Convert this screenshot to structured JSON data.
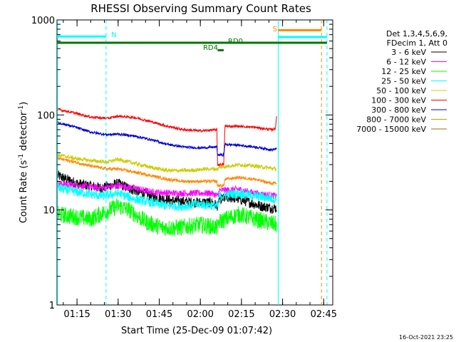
{
  "chart_data": {
    "type": "line",
    "title": "RHESSI Observing Summary Count Rates",
    "xlabel": "Start Time (25-Dec-09 01:07:42)",
    "ylabel_parts": [
      "Count Rate (s",
      "-1",
      " detector",
      "-1",
      ")"
    ],
    "y_scale": "log",
    "ylim": [
      1,
      1000
    ],
    "xlim_minutes": [
      67.7,
      168.3
    ],
    "y_ticks": [
      {
        "v": 1,
        "label": "1"
      },
      {
        "v": 10,
        "label": "10"
      },
      {
        "v": 100,
        "label": "100"
      },
      {
        "v": 1000,
        "label": "1000"
      }
    ],
    "x_ticks": [
      {
        "v": 75,
        "label": "01:15"
      },
      {
        "v": 90,
        "label": "01:30"
      },
      {
        "v": 105,
        "label": "01:45"
      },
      {
        "v": 120,
        "label": "02:00"
      },
      {
        "v": 135,
        "label": "02:15"
      },
      {
        "v": 150,
        "label": "02:30"
      },
      {
        "v": 165,
        "label": "02:45"
      }
    ],
    "legend_title": [
      "Det 1,3,4,5,6,9,",
      "FDecim 1, Att 0"
    ],
    "legend_placement": "right",
    "series": [
      {
        "name": "3 - 6 keV",
        "color": "#000000",
        "amp": 0.055,
        "points": [
          [
            68,
            23
          ],
          [
            75,
            19
          ],
          [
            84,
            17
          ],
          [
            90,
            19
          ],
          [
            96,
            16
          ],
          [
            102,
            14
          ],
          [
            110,
            12.5
          ],
          [
            118,
            12
          ],
          [
            124,
            12
          ],
          [
            126.5,
            11
          ],
          [
            126.8,
            13
          ],
          [
            132,
            13.5
          ],
          [
            138,
            12
          ],
          [
            142,
            11
          ],
          [
            146,
            10.5
          ],
          [
            147.8,
            10.5
          ]
        ]
      },
      {
        "name": "6 - 12 keV",
        "color": "#ff00ff",
        "amp": 0.035,
        "points": [
          [
            68,
            19
          ],
          [
            76,
            18
          ],
          [
            84,
            17
          ],
          [
            90,
            18
          ],
          [
            96,
            17
          ],
          [
            102,
            15.5
          ],
          [
            110,
            15
          ],
          [
            118,
            15
          ],
          [
            124,
            15
          ],
          [
            126.5,
            14
          ],
          [
            126.8,
            16
          ],
          [
            134,
            16.5
          ],
          [
            140,
            15
          ],
          [
            147.8,
            14
          ]
        ]
      },
      {
        "name": "12 - 25 keV",
        "color": "#00ff00",
        "amp": 0.09,
        "points": [
          [
            68,
            9
          ],
          [
            74,
            8.5
          ],
          [
            80,
            8
          ],
          [
            85,
            9.5
          ],
          [
            90,
            11
          ],
          [
            94,
            10
          ],
          [
            100,
            7.5
          ],
          [
            106,
            6.5
          ],
          [
            112,
            6.5
          ],
          [
            120,
            7
          ],
          [
            126.5,
            6.5
          ],
          [
            126.8,
            7.5
          ],
          [
            134,
            9
          ],
          [
            140,
            8
          ],
          [
            147.8,
            7
          ]
        ]
      },
      {
        "name": "25 - 50 keV",
        "color": "#00ffff",
        "amp": 0.05,
        "points": [
          [
            68,
            17
          ],
          [
            72,
            16
          ],
          [
            78,
            15
          ],
          [
            84,
            14
          ],
          [
            90,
            15
          ],
          [
            96,
            13
          ],
          [
            102,
            12
          ],
          [
            108,
            11
          ],
          [
            114,
            11
          ],
          [
            120,
            11.5
          ],
          [
            126.5,
            11
          ],
          [
            126.8,
            14
          ],
          [
            134,
            15
          ],
          [
            140,
            14
          ],
          [
            147.8,
            13
          ]
        ]
      },
      {
        "name": "50 - 100 keV",
        "color": "#cccc00",
        "amp": 0.02,
        "points": [
          [
            68,
            38
          ],
          [
            74,
            35
          ],
          [
            80,
            33
          ],
          [
            86,
            32
          ],
          [
            90,
            34
          ],
          [
            96,
            31
          ],
          [
            102,
            28
          ],
          [
            108,
            26
          ],
          [
            116,
            26
          ],
          [
            122,
            27
          ],
          [
            126.5,
            27
          ],
          [
            126.8,
            28
          ],
          [
            134,
            30
          ],
          [
            140,
            29
          ],
          [
            147.8,
            27
          ]
        ]
      },
      {
        "name": "100 - 300 keV",
        "color": "#ff0000",
        "amp": 0.013,
        "points": [
          [
            68,
            115
          ],
          [
            74,
            105
          ],
          [
            80,
            95
          ],
          [
            86,
            92
          ],
          [
            90,
            97
          ],
          [
            96,
            94
          ],
          [
            102,
            85
          ],
          [
            108,
            76
          ],
          [
            114,
            70
          ],
          [
            120,
            68
          ],
          [
            126,
            70
          ],
          [
            126.3,
            30
          ],
          [
            128.5,
            30
          ],
          [
            129,
            76
          ],
          [
            134,
            76
          ],
          [
            140,
            74
          ],
          [
            146,
            70
          ],
          [
            147.4,
            72
          ],
          [
            147.8,
            100
          ]
        ]
      },
      {
        "name": "300 - 800 keV",
        "color": "#0000dd",
        "amp": 0.013,
        "points": [
          [
            68,
            83
          ],
          [
            74,
            75
          ],
          [
            80,
            66
          ],
          [
            86,
            62
          ],
          [
            90,
            63
          ],
          [
            96,
            60
          ],
          [
            102,
            55
          ],
          [
            108,
            49
          ],
          [
            114,
            46
          ],
          [
            120,
            45
          ],
          [
            126,
            46
          ],
          [
            126.3,
            38
          ],
          [
            128.5,
            38
          ],
          [
            129,
            49
          ],
          [
            134,
            48
          ],
          [
            140,
            46
          ],
          [
            146,
            43
          ],
          [
            147.8,
            44
          ]
        ]
      },
      {
        "name": "800 - 7000 keV",
        "color": "#ff8800",
        "amp": 0.016,
        "points": [
          [
            68,
            35
          ],
          [
            74,
            32
          ],
          [
            80,
            29
          ],
          [
            86,
            27
          ],
          [
            90,
            27
          ],
          [
            96,
            25
          ],
          [
            102,
            23
          ],
          [
            108,
            21
          ],
          [
            114,
            20
          ],
          [
            120,
            20
          ],
          [
            126,
            20
          ],
          [
            126.3,
            18
          ],
          [
            128.5,
            18
          ],
          [
            129,
            21
          ],
          [
            134,
            22
          ],
          [
            140,
            21
          ],
          [
            146,
            19
          ],
          [
            147.8,
            19
          ]
        ]
      },
      {
        "name": "7000 - 15000 keV",
        "color": "#aa6600",
        "amp": 0.0,
        "points": []
      }
    ],
    "flags": [
      {
        "label": "N",
        "color": "#00ffff",
        "y": 670,
        "x0": 67.7,
        "x1": 85.6
      },
      {
        "label": "S",
        "color": "#ff8800",
        "y": 780,
        "x0": 148.4,
        "x1": 164.2
      },
      {
        "label": "",
        "color": "#00ffff",
        "y": 660,
        "x0": 148.4,
        "x1": 166.2
      },
      {
        "label": "RD0",
        "color": "#007700",
        "y": 575,
        "x0": 67.7,
        "x1": 166.2
      },
      {
        "label": "RD4",
        "color": "#007700",
        "y": 480,
        "x0": 126.3,
        "x1": 128.5
      }
    ],
    "vlines": [
      {
        "x": 67.9,
        "color": "#00ffff",
        "dash": false
      },
      {
        "x": 85.6,
        "color": "#00ffff",
        "dash": true
      },
      {
        "x": 148.4,
        "color": "#00ffff",
        "dash": false
      },
      {
        "x": 164.2,
        "color": "#ff8800",
        "dash": true
      },
      {
        "x": 166.2,
        "color": "#00ffff",
        "dash": true
      }
    ]
  },
  "footer_timestamp": "16-Oct-2021 23:25"
}
